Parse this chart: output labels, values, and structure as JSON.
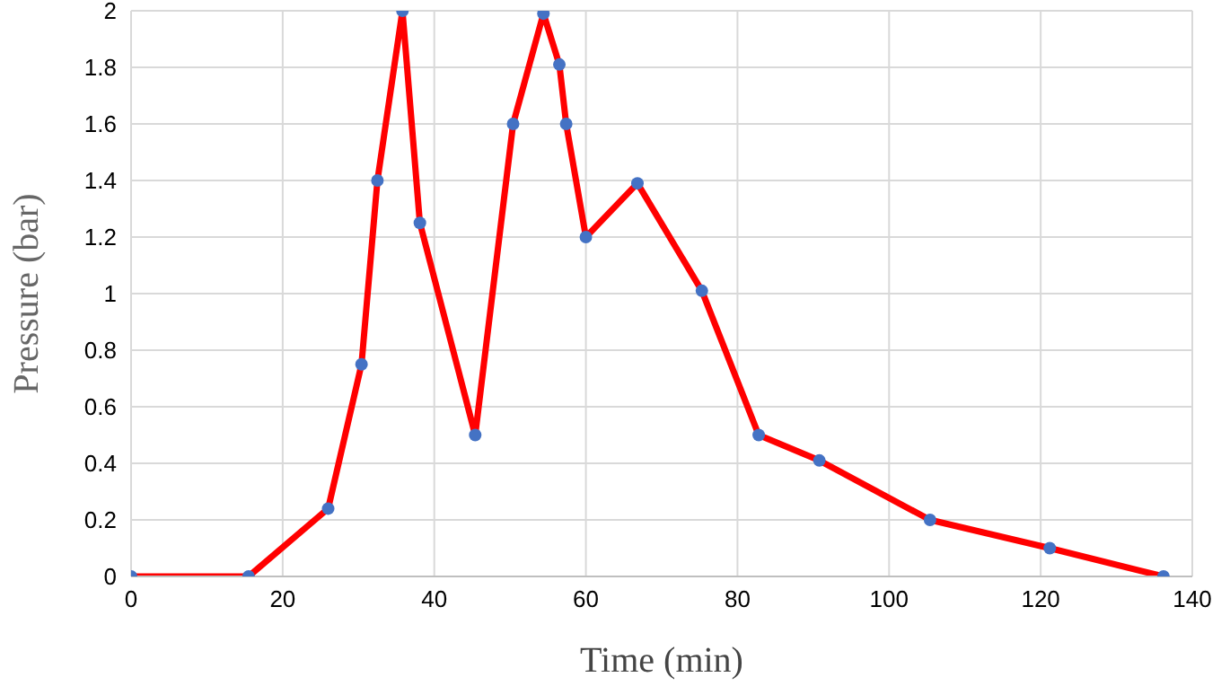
{
  "chart_data": {
    "type": "line",
    "xlabel": "Time (min)",
    "ylabel": "Pressure (bar)",
    "x": [
      0,
      15.5,
      26,
      30.4,
      32.5,
      35.8,
      38.1,
      45.4,
      50.4,
      54.4,
      56.5,
      57.4,
      60,
      66.8,
      75.3,
      82.8,
      90.8,
      105.4,
      121.2,
      136.2
    ],
    "series": [
      {
        "color": "#ff0000",
        "values": [
          0,
          0,
          0.24,
          0.75,
          1.4,
          2,
          1.25,
          0.5,
          1.6,
          1.99,
          1.81,
          1.6,
          1.2,
          1.39,
          1.01,
          0.5,
          0.41,
          0.2,
          0.1,
          0
        ]
      }
    ],
    "xlim": [
      0,
      140
    ],
    "xticks": [
      0,
      20,
      40,
      60,
      80,
      100,
      120,
      140
    ],
    "ylim": [
      0,
      2
    ],
    "yticks": [
      0,
      0.2,
      0.4,
      0.6,
      0.8,
      1,
      1.2,
      1.4,
      1.6,
      1.8,
      2
    ],
    "grid": true,
    "marker": "circle",
    "line_style": "solid"
  }
}
